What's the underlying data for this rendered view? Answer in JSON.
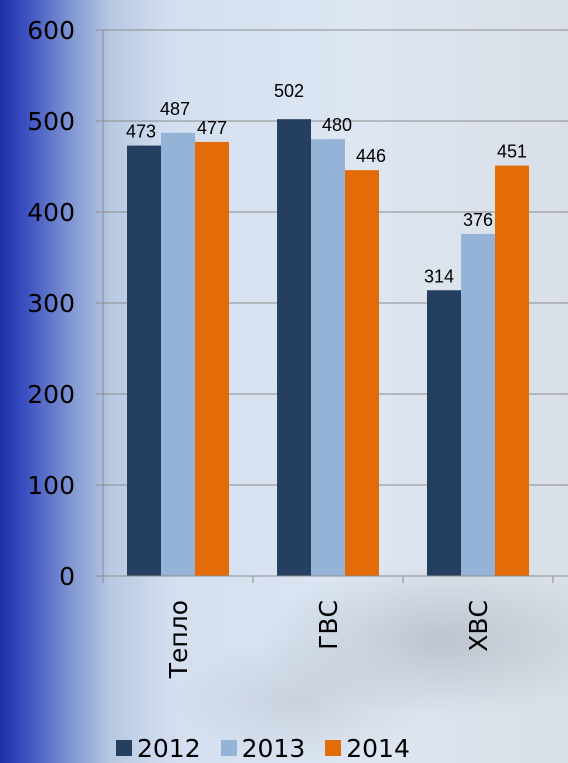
{
  "chart_data": {
    "type": "bar",
    "categories": [
      "Тепло",
      "ГВС",
      "ХВС"
    ],
    "series": [
      {
        "name": "2012",
        "values": [
          473,
          502,
          314
        ],
        "color": "#243f60"
      },
      {
        "name": "2013",
        "values": [
          487,
          480,
          376
        ],
        "color": "#95b3d7"
      },
      {
        "name": "2014",
        "values": [
          477,
          446,
          451
        ],
        "color": "#e36c09"
      }
    ],
    "ylim": [
      0,
      600
    ],
    "yticks": [
      "0",
      "100",
      "200",
      "300",
      "400",
      "500",
      "600"
    ],
    "title": "",
    "xlabel": "",
    "ylabel": "",
    "grid": true,
    "legend_position": "bottom",
    "data_labels": true
  }
}
